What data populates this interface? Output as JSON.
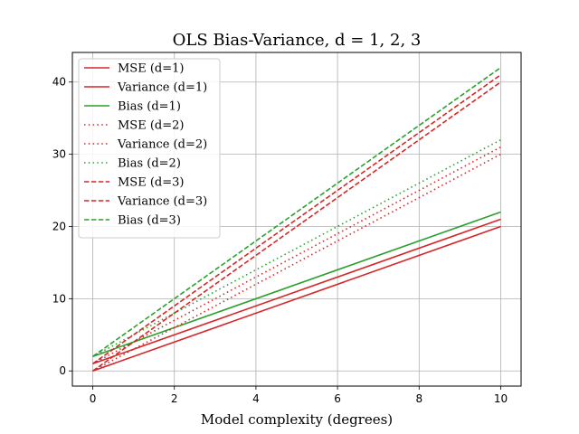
{
  "chart_data": {
    "type": "line",
    "title": "OLS Bias-Variance, d = 1, 2, 3",
    "xlabel": "Model complexity (degrees)",
    "ylabel": "",
    "xlim": [
      -0.5,
      10.5
    ],
    "ylim": [
      -2.1,
      44.1
    ],
    "xticks": [
      0,
      2,
      4,
      6,
      8,
      10
    ],
    "yticks": [
      0,
      10,
      20,
      30,
      40
    ],
    "grid": true,
    "legend_position": "top-left",
    "x": [
      0,
      10
    ],
    "series": [
      {
        "name": "MSE (d=1)",
        "values": [
          0,
          20
        ],
        "color": "#d62728",
        "style": "solid"
      },
      {
        "name": "Variance (d=1)",
        "values": [
          1,
          21
        ],
        "color": "#d62728",
        "style": "solid"
      },
      {
        "name": "Bias (d=1)",
        "values": [
          2,
          22
        ],
        "color": "#2ca02c",
        "style": "solid"
      },
      {
        "name": "MSE (d=2)",
        "values": [
          0,
          30
        ],
        "color": "#d62728",
        "style": "dotted"
      },
      {
        "name": "Variance (d=2)",
        "values": [
          1,
          31
        ],
        "color": "#d62728",
        "style": "dotted"
      },
      {
        "name": "Bias (d=2)",
        "values": [
          2,
          32
        ],
        "color": "#2ca02c",
        "style": "dotted"
      },
      {
        "name": "MSE (d=3)",
        "values": [
          0,
          40
        ],
        "color": "#d62728",
        "style": "dashed"
      },
      {
        "name": "Variance (d=3)",
        "values": [
          1,
          41
        ],
        "color": "#d62728",
        "style": "dashed"
      },
      {
        "name": "Bias (d=3)",
        "values": [
          2,
          42
        ],
        "color": "#2ca02c",
        "style": "dashed"
      }
    ]
  }
}
